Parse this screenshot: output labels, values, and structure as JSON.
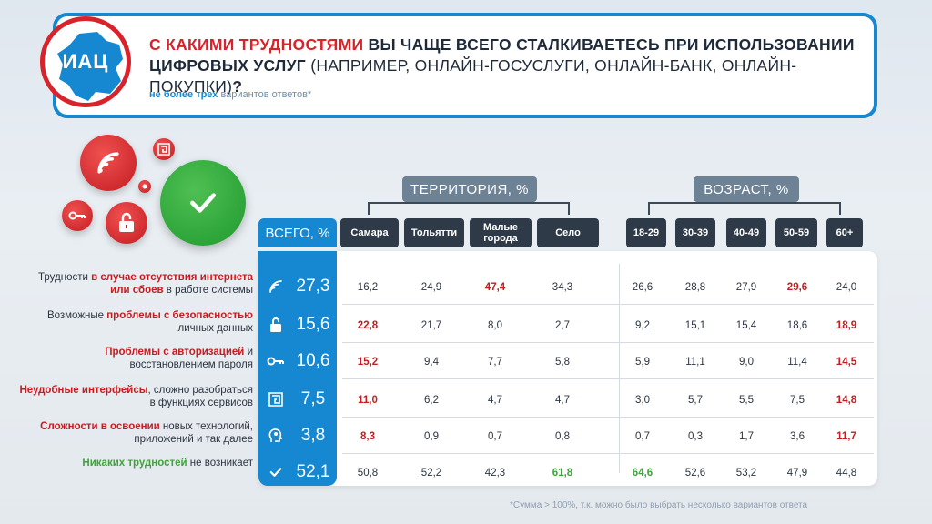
{
  "logo": {
    "text": "ИАЦ"
  },
  "question": {
    "part1_red": "С КАКИМИ ТРУДНОСТЯМИ",
    "part2_dark": " ВЫ ЧАЩЕ ВСЕГО СТАЛКИВАЕТЕСЬ ПРИ ИСПОЛЬЗОВАНИИ ЦИФРОВЫХ УСЛУГ",
    "part3_normal": " (НАПРИМЕР, ОНЛАЙН-ГОСУСЛУГИ, ОНЛАЙН-БАНК, ОНЛАЙН-ПОКУПКИ)",
    "part4_qmark": "?",
    "sub_bold": "не более трех",
    "sub_light": " вариантов ответов*"
  },
  "groups": {
    "territory": "ТЕРРИТОРИЯ, %",
    "age": "ВОЗРАСТ, %"
  },
  "columns": {
    "total": "ВСЕГО, %",
    "territory": [
      "Самара",
      "Тольятти",
      "Малые города",
      "Село"
    ],
    "age": [
      "18-29",
      "30-39",
      "40-49",
      "50-59",
      "60+"
    ]
  },
  "rows": [
    {
      "pre": "Трудности ",
      "hl": "в случае отсутствия интернета или сбоев",
      "post": " в работе системы",
      "icon": "wifi-icon",
      "green": false,
      "total": "27,3",
      "values": [
        "16,2",
        "24,9",
        "47,4",
        "34,3",
        "26,6",
        "28,8",
        "27,9",
        "29,6",
        "24,0"
      ],
      "highlight": [
        2,
        7
      ]
    },
    {
      "pre": "Возможные ",
      "hl": "проблемы с безопасностью",
      "post": " личных данных",
      "icon": "lock-icon",
      "green": false,
      "total": "15,6",
      "values": [
        "22,8",
        "21,7",
        "8,0",
        "2,7",
        "9,2",
        "15,1",
        "15,4",
        "18,6",
        "18,9"
      ],
      "highlight": [
        0,
        8
      ]
    },
    {
      "pre": "",
      "hl": "Проблемы с авторизацией",
      "post": " и восстановлением пароля",
      "icon": "key-icon",
      "green": false,
      "total": "10,6",
      "values": [
        "15,2",
        "9,4",
        "7,7",
        "5,8",
        "5,9",
        "11,1",
        "9,0",
        "11,4",
        "14,5"
      ],
      "highlight": [
        0,
        8
      ]
    },
    {
      "pre": "",
      "hl": "Неудобные интерфейсы",
      "post": ", сложно разобраться в функциях сервисов",
      "icon": "maze-icon",
      "green": false,
      "total": "7,5",
      "values": [
        "11,0",
        "6,2",
        "4,7",
        "4,7",
        "3,0",
        "5,7",
        "5,5",
        "7,5",
        "14,8"
      ],
      "highlight": [
        0,
        8
      ]
    },
    {
      "pre": "",
      "hl": "Сложности в освоении",
      "post": " новых технологий, приложений и так далее",
      "icon": "head-gear-icon",
      "green": false,
      "total": "3,8",
      "values": [
        "8,3",
        "0,9",
        "0,7",
        "0,8",
        "0,7",
        "0,3",
        "1,7",
        "3,6",
        "11,7"
      ],
      "highlight": [
        0,
        8
      ]
    },
    {
      "pre": "",
      "hl": "Никаких трудностей",
      "post": " не возникает",
      "icon": "check-icon",
      "green": true,
      "total": "52,1",
      "values": [
        "50,8",
        "52,2",
        "42,3",
        "61,8",
        "64,6",
        "52,6",
        "53,2",
        "47,9",
        "44,8"
      ],
      "highlight": [
        3,
        4
      ]
    }
  ],
  "footnote": "*Сумма  > 100%, т.к. можно было выбрать несколько вариантов ответа",
  "colors": {
    "accent_blue": "#1588d1",
    "highlight_red": "#c31d22",
    "highlight_green": "#3fa33c",
    "header_dark": "#2e3a48"
  }
}
